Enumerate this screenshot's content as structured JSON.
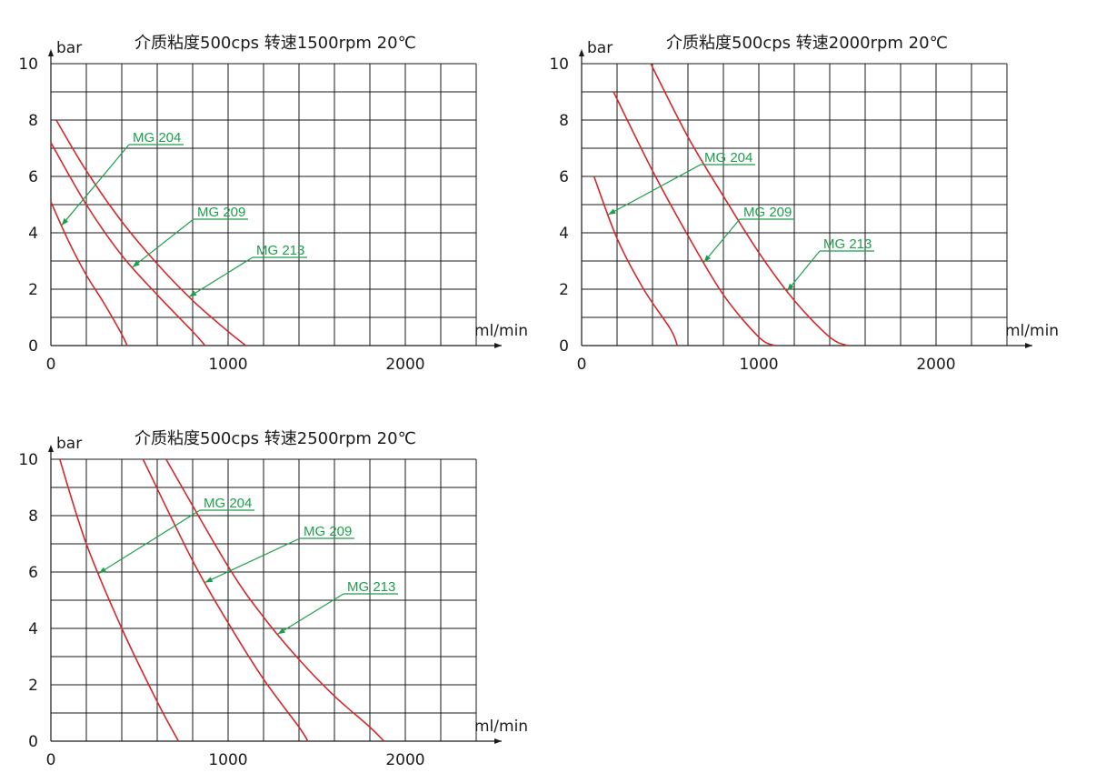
{
  "colors": {
    "curve": "#d4282a",
    "label": "#1e9e4c",
    "grid": "#1a1a1a"
  },
  "chart_data": [
    {
      "type": "line",
      "title": "介质粘度500cps   转速1500rpm   20℃",
      "ylabel": "bar",
      "xlabel": "ml/min",
      "xlim": [
        0,
        2400
      ],
      "ylim": [
        0,
        10
      ],
      "x_ticks": [
        "0",
        "1000",
        "2000"
      ],
      "y_ticks": [
        "0",
        "2",
        "4",
        "6",
        "8",
        "10"
      ],
      "grid": true,
      "series": [
        {
          "name": "MG 204",
          "points": [
            [
              0,
              5.1
            ],
            [
              100,
              3.7
            ],
            [
              200,
              2.5
            ],
            [
              300,
              1.5
            ],
            [
              400,
              0.4
            ],
            [
              430,
              0
            ]
          ]
        },
        {
          "name": "MG 209",
          "points": [
            [
              0,
              7.2
            ],
            [
              200,
              5.0
            ],
            [
              400,
              3.2
            ],
            [
              600,
              1.8
            ],
            [
              800,
              0.5
            ],
            [
              870,
              0
            ]
          ]
        },
        {
          "name": "MG 213",
          "points": [
            [
              30,
              8.0
            ],
            [
              200,
              6.2
            ],
            [
              400,
              4.4
            ],
            [
              600,
              2.9
            ],
            [
              800,
              1.6
            ],
            [
              1000,
              0.5
            ],
            [
              1100,
              0
            ]
          ]
        }
      ],
      "annotations": [
        {
          "text": "MG 204",
          "target_series": 0,
          "target_x": 60
        },
        {
          "text": "MG 209",
          "target_series": 1,
          "target_x": 460
        },
        {
          "text": "MG 213",
          "target_series": 2,
          "target_x": 780
        }
      ]
    },
    {
      "type": "line",
      "title": "介质粘度500cps   转速2000rpm   20℃",
      "ylabel": "bar",
      "xlabel": "ml/min",
      "xlim": [
        0,
        2400
      ],
      "ylim": [
        0,
        10
      ],
      "x_ticks": [
        "0",
        "1000",
        "2000"
      ],
      "y_ticks": [
        "0",
        "2",
        "4",
        "6",
        "8",
        "10"
      ],
      "grid": true,
      "series": [
        {
          "name": "MG 204",
          "points": [
            [
              70,
              6.0
            ],
            [
              200,
              3.8
            ],
            [
              350,
              2.0
            ],
            [
              500,
              0.6
            ],
            [
              540,
              0
            ]
          ]
        },
        {
          "name": "MG 209",
          "points": [
            [
              180,
              9.0
            ],
            [
              400,
              6.2
            ],
            [
              600,
              3.9
            ],
            [
              800,
              1.8
            ],
            [
              1000,
              0.3
            ],
            [
              1090,
              0
            ]
          ]
        },
        {
          "name": "MG 213",
          "points": [
            [
              390,
              10.0
            ],
            [
              600,
              7.4
            ],
            [
              800,
              5.3
            ],
            [
              1000,
              3.3
            ],
            [
              1200,
              1.6
            ],
            [
              1400,
              0.3
            ],
            [
              1500,
              0
            ]
          ]
        }
      ],
      "annotations": [
        {
          "text": "MG 204",
          "target_series": 0,
          "target_x": 150
        },
        {
          "text": "MG 209",
          "target_series": 1,
          "target_x": 690
        },
        {
          "text": "MG 213",
          "target_series": 2,
          "target_x": 1160
        }
      ]
    },
    {
      "type": "line",
      "title": "介质粘度500cps   转速2500rpm   20℃",
      "ylabel": "bar",
      "xlabel": "ml/min",
      "xlim": [
        0,
        2400
      ],
      "ylim": [
        0,
        10
      ],
      "x_ticks": [
        "0",
        "1000",
        "2000"
      ],
      "y_ticks": [
        "0",
        "2",
        "4",
        "6",
        "8",
        "10"
      ],
      "grid": true,
      "series": [
        {
          "name": "MG 204",
          "points": [
            [
              50,
              10.0
            ],
            [
              200,
              7.0
            ],
            [
              400,
              4.0
            ],
            [
              600,
              1.4
            ],
            [
              720,
              0
            ]
          ]
        },
        {
          "name": "MG 209",
          "points": [
            [
              520,
              10.0
            ],
            [
              800,
              6.4
            ],
            [
              1000,
              4.2
            ],
            [
              1200,
              2.2
            ],
            [
              1400,
              0.5
            ],
            [
              1450,
              0
            ]
          ]
        },
        {
          "name": "MG 213",
          "points": [
            [
              650,
              10.0
            ],
            [
              1000,
              6.2
            ],
            [
              1200,
              4.4
            ],
            [
              1400,
              2.9
            ],
            [
              1600,
              1.6
            ],
            [
              1800,
              0.5
            ],
            [
              1880,
              0
            ]
          ]
        }
      ],
      "annotations": [
        {
          "text": "MG 204",
          "target_series": 0,
          "target_x": 270
        },
        {
          "text": "MG 209",
          "target_series": 1,
          "target_x": 870
        },
        {
          "text": "MG 213",
          "target_series": 2,
          "target_x": 1280
        }
      ]
    }
  ]
}
